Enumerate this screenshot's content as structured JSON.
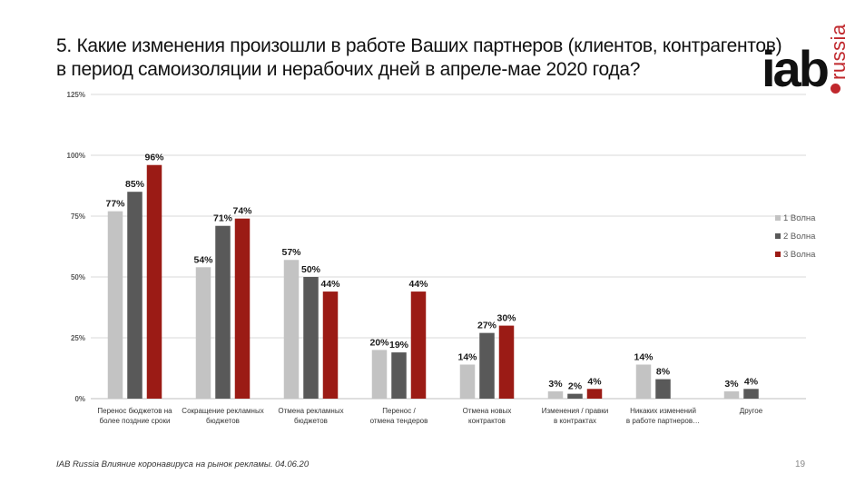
{
  "title_lines": [
    "5. Какие изменения произошли в работе Ваших партнеров (клиентов, контрагентов)",
    "в период самоизоляции и нерабочих дней в апреле-мае 2020 года?"
  ],
  "logo": {
    "main": "iab",
    "sub": "russia"
  },
  "footer": "IAB Russia Влияние коронавируса на рынок рекламы. 04.06.20",
  "page_number": "19",
  "colors": {
    "wave1": "#c3c3c3",
    "wave2": "#595959",
    "wave3": "#9b1b15",
    "grid": "#d9d9d9",
    "logo_accent": "#c0282d"
  },
  "chart_data": {
    "type": "bar",
    "ylim": [
      0,
      125
    ],
    "yticks": [
      "0%",
      "25%",
      "50%",
      "75%",
      "100%",
      "125%"
    ],
    "grid": true,
    "legend_position": "right",
    "categories": [
      [
        "Перенос бюджетов на",
        "более поздние сроки"
      ],
      [
        "Сокращение рекламных",
        "бюджетов"
      ],
      [
        "Отмена рекламных",
        "бюджетов"
      ],
      [
        "Перенос /",
        "отмена тендеров"
      ],
      [
        "Отмена новых",
        "контрактов"
      ],
      [
        "Изменения / правки",
        "в контрактах"
      ],
      [
        "Никаких изменений",
        "в работе партнеров…"
      ],
      [
        "Другое"
      ]
    ],
    "series": [
      {
        "name": "1 Волна",
        "values": [
          77,
          54,
          57,
          20,
          14,
          3,
          14,
          3
        ],
        "labels": [
          "77%",
          "54%",
          "57%",
          "20%",
          "14%",
          "3%",
          "14%",
          "3%"
        ]
      },
      {
        "name": "2 Волна",
        "values": [
          85,
          71,
          50,
          19,
          27,
          2,
          8,
          4
        ],
        "labels": [
          "85%",
          "71%",
          "50%",
          "19%",
          "27%",
          "2%",
          "8%",
          "4%"
        ]
      },
      {
        "name": "3 Волна",
        "values": [
          96,
          74,
          44,
          44,
          30,
          4,
          null,
          null
        ],
        "labels": [
          "96%",
          "74%",
          "44%",
          "44%",
          "30%",
          "4%",
          "",
          ""
        ]
      }
    ]
  }
}
